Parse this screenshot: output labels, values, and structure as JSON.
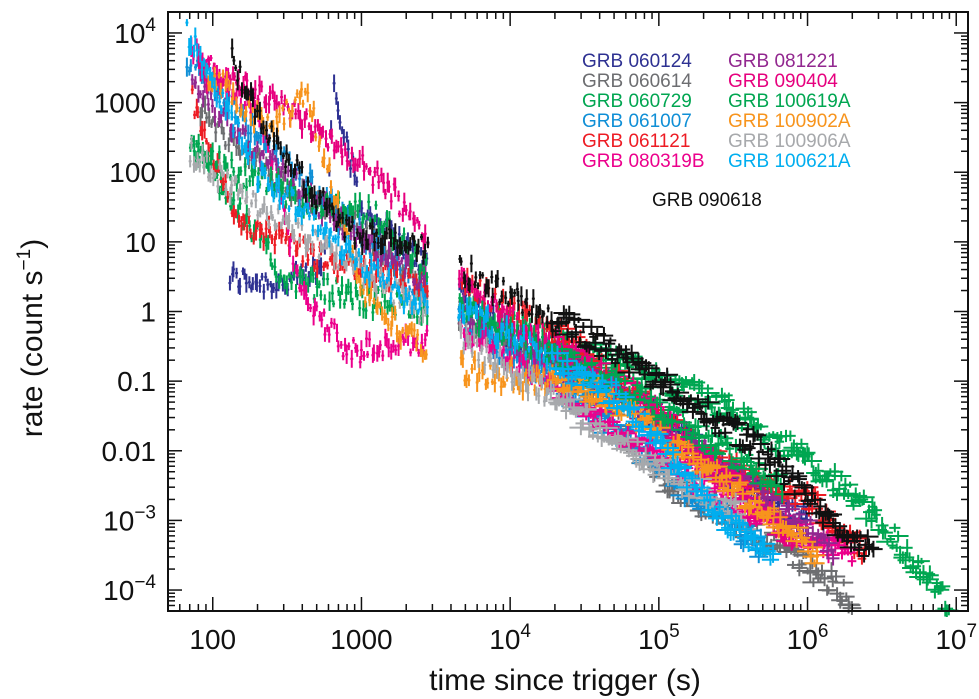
{
  "chart_data": {
    "type": "scatter",
    "xlabel": "time since trigger (s)",
    "ylabel": "rate (count s",
    "ylabel_sup": "−1",
    "ylabel_close": ")",
    "xscale": "log",
    "yscale": "log",
    "xlim": [
      50,
      12000000
    ],
    "ylim": [
      5e-05,
      20000
    ],
    "grid": false,
    "legend_position": "top-right",
    "x_ticks": [
      {
        "value": 100,
        "base": "100",
        "exp": ""
      },
      {
        "value": 1000,
        "base": "1000",
        "exp": ""
      },
      {
        "value": 10000,
        "base": "10",
        "exp": "4"
      },
      {
        "value": 100000,
        "base": "10",
        "exp": "5"
      },
      {
        "value": 1000000,
        "base": "10",
        "exp": "6"
      },
      {
        "value": 10000000,
        "base": "10",
        "exp": "7"
      }
    ],
    "y_ticks": [
      {
        "value": 10000,
        "base": "10",
        "exp": "4"
      },
      {
        "value": 1000,
        "base": "1000",
        "exp": ""
      },
      {
        "value": 100,
        "base": "100",
        "exp": ""
      },
      {
        "value": 10,
        "base": "10",
        "exp": ""
      },
      {
        "value": 1,
        "base": "1",
        "exp": ""
      },
      {
        "value": 0.1,
        "base": "0.1",
        "exp": ""
      },
      {
        "value": 0.01,
        "base": "0.01",
        "exp": ""
      },
      {
        "value": 0.001,
        "base": "10",
        "exp": "−3"
      },
      {
        "value": 0.0001,
        "base": "10",
        "exp": "−4"
      }
    ],
    "annotation": "GRB 090618",
    "series": [
      {
        "name": "GRB 060124",
        "color": "#2e3192",
        "decay": [
          [
            130,
            3
          ],
          [
            300,
            2.5
          ],
          [
            560,
            4
          ],
          [
            650,
            2000
          ],
          [
            1000,
            30
          ],
          [
            8000,
            0.6
          ],
          [
            30000,
            0.15
          ],
          [
            100000,
            0.03
          ],
          [
            300000,
            0.005
          ],
          [
            1000000,
            0.001
          ]
        ]
      },
      {
        "name": "GRB 060614",
        "color": "#6d6e71",
        "decay": [
          [
            80,
            800
          ],
          [
            300,
            60
          ],
          [
            1000,
            15
          ],
          [
            6000,
            0.6
          ],
          [
            30000,
            0.1
          ],
          [
            120000,
            0.003
          ],
          [
            400000,
            0.0008
          ],
          [
            2000000,
            8e-05
          ]
        ]
      },
      {
        "name": "GRB 060729",
        "color": "#00a651",
        "decay": [
          [
            70,
            300
          ],
          [
            150,
            30
          ],
          [
            300,
            3
          ],
          [
            1000,
            1.5
          ],
          [
            5000,
            1
          ],
          [
            30000,
            0.3
          ],
          [
            200000,
            0.06
          ],
          [
            1000000,
            0.008
          ],
          [
            3000000,
            0.001
          ],
          [
            9000000,
            6e-05
          ]
        ]
      },
      {
        "name": "GRB 061007",
        "color": "#0f8fd6",
        "decay": [
          [
            65,
            5000
          ],
          [
            150,
            600
          ],
          [
            600,
            40
          ],
          [
            2000,
            3
          ],
          [
            6000,
            0.5
          ],
          [
            30000,
            0.05
          ],
          [
            150000,
            0.003
          ],
          [
            500000,
            0.0004
          ]
        ]
      },
      {
        "name": "GRB 061121",
        "color": "#ed1c24",
        "decay": [
          [
            70,
            1500
          ],
          [
            150,
            20
          ],
          [
            600,
            5
          ],
          [
            6000,
            2
          ],
          [
            30000,
            0.3
          ],
          [
            200000,
            0.008
          ],
          [
            1000000,
            0.002
          ],
          [
            2500000,
            0.0003
          ]
        ]
      },
      {
        "name": "GRB 080319B",
        "color": "#ec008c",
        "decay": [
          [
            70,
            6000
          ],
          [
            200,
            800
          ],
          [
            400,
            2
          ],
          [
            800,
            0.25
          ],
          [
            6000,
            0.5
          ],
          [
            50000,
            0.02
          ],
          [
            300000,
            0.002
          ],
          [
            1000000,
            0.0006
          ],
          [
            2000000,
            0.0003
          ]
        ]
      },
      {
        "name": "GRB 081221",
        "color": "#92278f",
        "decay": [
          [
            70,
            2000
          ],
          [
            200,
            200
          ],
          [
            800,
            15
          ],
          [
            6000,
            0.8
          ],
          [
            60000,
            0.06
          ],
          [
            500000,
            0.002
          ],
          [
            1500000,
            0.0004
          ]
        ]
      },
      {
        "name": "GRB 090404",
        "color": "#e6007e",
        "decay": [
          [
            80,
            3000
          ],
          [
            300,
            1000
          ],
          [
            1500,
            60
          ],
          [
            6000,
            1.5
          ],
          [
            80000,
            0.05
          ],
          [
            800000,
            0.0005
          ]
        ]
      },
      {
        "name": "GRB 100619A",
        "color": "#00a651",
        "decay": [
          [
            70,
            200
          ],
          [
            400,
            40
          ],
          [
            1200,
            25
          ],
          [
            6000,
            0.8
          ],
          [
            60000,
            0.08
          ],
          [
            700000,
            0.003
          ]
        ]
      },
      {
        "name": "GRB 100902A",
        "color": "#f7941d",
        "decay": [
          [
            90,
            3000
          ],
          [
            250,
            400
          ],
          [
            420,
            1500
          ],
          [
            1000,
            2
          ],
          [
            2500,
            0.3
          ],
          [
            5000,
            0.15
          ],
          [
            40000,
            0.07
          ],
          [
            400000,
            0.002
          ],
          [
            1200000,
            0.0003
          ]
        ]
      },
      {
        "name": "GRB 100906A",
        "color": "#a7a9ac",
        "decay": [
          [
            70,
            200
          ],
          [
            200,
            30
          ],
          [
            1000,
            4
          ],
          [
            6000,
            0.3
          ],
          [
            80000,
            0.008
          ],
          [
            400000,
            0.001
          ]
        ]
      },
      {
        "name": "GRB 100621A",
        "color": "#00aeef",
        "decay": [
          [
            65,
            12000
          ],
          [
            200,
            100
          ],
          [
            1000,
            5
          ],
          [
            2000,
            1.5
          ],
          [
            6000,
            0.8
          ],
          [
            60000,
            0.05
          ],
          [
            200000,
            0.002
          ],
          [
            600000,
            0.0003
          ]
        ]
      },
      {
        "name": "GRB 090618",
        "color": "#111111",
        "decay": [
          [
            130,
            5000
          ],
          [
            200,
            600
          ],
          [
            400,
            80
          ],
          [
            800,
            15
          ],
          [
            2500,
            8
          ],
          [
            7000,
            2.5
          ],
          [
            30000,
            0.5
          ],
          [
            100000,
            0.1
          ],
          [
            500000,
            0.01
          ],
          [
            2000000,
            0.0005
          ],
          [
            2800000,
            0.0004
          ]
        ]
      }
    ]
  }
}
